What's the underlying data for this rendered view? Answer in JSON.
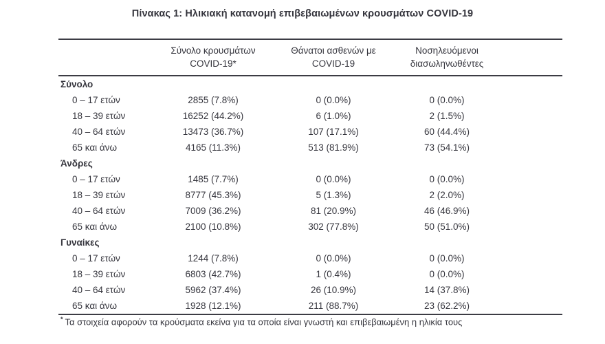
{
  "title": "Πίνακας 1: Ηλικιακή κατανομή επιβεβαιωμένων κρουσμάτων COVID-19",
  "table": {
    "columns": [
      {
        "line1": "Σύνολο κρουσμάτων",
        "line2": "COVID-19*"
      },
      {
        "line1": "Θάνατοι ασθενών με",
        "line2": "COVID-19"
      },
      {
        "line1": "Νοσηλευόμενοι",
        "line2": "διασωληνωθέντες"
      }
    ],
    "sections": [
      {
        "name": "Σύνολο",
        "rows": [
          {
            "age": "0 – 17 ετών",
            "cases": "2855 (7.8%)",
            "deaths": "0 (0.0%)",
            "intubated": "0 (0.0%)"
          },
          {
            "age": "18 – 39 ετών",
            "cases": "16252 (44.2%)",
            "deaths": "6 (1.0%)",
            "intubated": "2 (1.5%)"
          },
          {
            "age": "40 – 64 ετών",
            "cases": "13473 (36.7%)",
            "deaths": "107 (17.1%)",
            "intubated": "60 (44.4%)"
          },
          {
            "age": "65 και άνω",
            "cases": "4165 (11.3%)",
            "deaths": "513 (81.9%)",
            "intubated": "73 (54.1%)"
          }
        ]
      },
      {
        "name": "Άνδρες",
        "rows": [
          {
            "age": "0 – 17 ετών",
            "cases": "1485 (7.7%)",
            "deaths": "0 (0.0%)",
            "intubated": "0 (0.0%)"
          },
          {
            "age": "18 – 39 ετών",
            "cases": "8777 (45.3%)",
            "deaths": "5 (1.3%)",
            "intubated": "2 (2.0%)"
          },
          {
            "age": "40 – 64 ετών",
            "cases": "7009 (36.2%)",
            "deaths": "81 (20.9%)",
            "intubated": "46 (46.9%)"
          },
          {
            "age": "65 και άνω",
            "cases": "2100 (10.8%)",
            "deaths": "302 (77.8%)",
            "intubated": "50 (51.0%)"
          }
        ]
      },
      {
        "name": "Γυναίκες",
        "rows": [
          {
            "age": "0 – 17 ετών",
            "cases": "1244 (7.8%)",
            "deaths": "0 (0.0%)",
            "intubated": "0 (0.0%)"
          },
          {
            "age": "18 – 39 ετών",
            "cases": "6803 (42.7%)",
            "deaths": "1 (0.4%)",
            "intubated": "0 (0.0%)"
          },
          {
            "age": "40 – 64 ετών",
            "cases": "5962 (37.4%)",
            "deaths": "26 (10.9%)",
            "intubated": "14 (37.8%)"
          },
          {
            "age": "65 και άνω",
            "cases": "1928 (12.1%)",
            "deaths": "211 (88.7%)",
            "intubated": "23 (62.2%)"
          }
        ]
      }
    ]
  },
  "footnote": {
    "marker": "*",
    "text": "Τα στοιχεία αφορούν τα κρούσματα εκείνα για τα οποία είναι γνωστή και επιβεβαιωμένη η ηλικία τους"
  },
  "colors": {
    "text": "#35353d",
    "rule": "#3c3c44",
    "background": "#ffffff"
  }
}
